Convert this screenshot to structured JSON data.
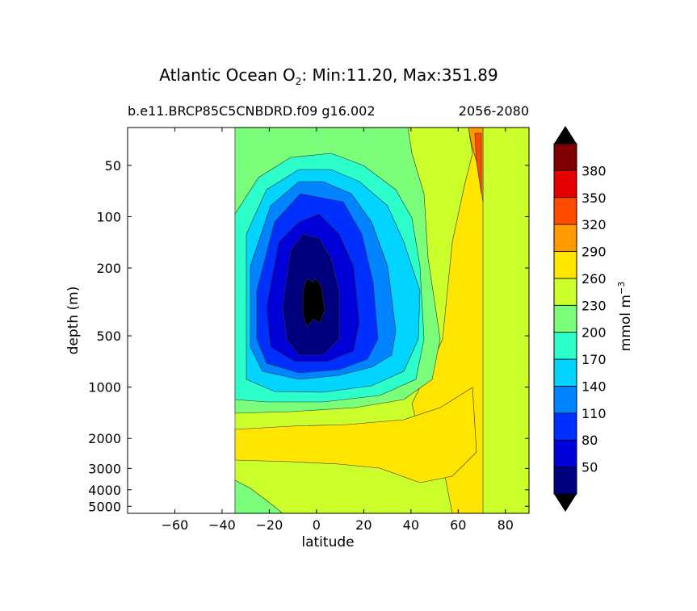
{
  "chart_data": {
    "type": "heatmap",
    "title_main": "Atlantic Ocean O",
    "title_sub_2": "2",
    "title_rest": ": Min:11.20, Max:351.89",
    "subtitle_left": "b.e11.BRCP85C5CNBDRD.f09 g16.002",
    "subtitle_right": "2056-2080",
    "xlabel": "latitude",
    "ylabel": "depth (m)",
    "xlim": [
      -80,
      90
    ],
    "x_ticks": [
      -60,
      -40,
      -20,
      0,
      20,
      40,
      60,
      80
    ],
    "x_tick_labels": [
      "−60",
      "−40",
      "−20",
      "0",
      "20",
      "40",
      "60",
      "80"
    ],
    "y_scale": "log",
    "y_inverted": true,
    "ylim": [
      5500,
      30
    ],
    "y_ticks": [
      50,
      100,
      200,
      500,
      1000,
      2000,
      3000,
      4000,
      5000
    ],
    "y_tick_labels": [
      "50",
      "100",
      "200",
      "500",
      "1000",
      "2000",
      "3000",
      "4000",
      "5000"
    ],
    "colorbar": {
      "label": "mmol m",
      "label_sup": "−3",
      "levels": [
        20,
        50,
        80,
        110,
        140,
        170,
        200,
        230,
        260,
        290,
        320,
        350,
        380,
        410
      ],
      "tick_values": [
        50,
        80,
        110,
        140,
        170,
        200,
        230,
        260,
        290,
        320,
        350,
        380
      ],
      "tick_labels": [
        "50",
        "80",
        "110",
        "140",
        "170",
        "200",
        "230",
        "260",
        "290",
        "320",
        "350",
        "380"
      ],
      "colors": [
        "#00007f",
        "#0000d9",
        "#0030ff",
        "#0084ff",
        "#00d4ff",
        "#2cffca",
        "#7bff7b",
        "#caff2c",
        "#ffe500",
        "#ff9a00",
        "#ff4b00",
        "#e50000",
        "#7f0000"
      ],
      "extend_colors": {
        "min": "#000000",
        "max": "#000000"
      }
    },
    "data_extent": {
      "lat_min": -35,
      "lat_max": 68
    }
  }
}
